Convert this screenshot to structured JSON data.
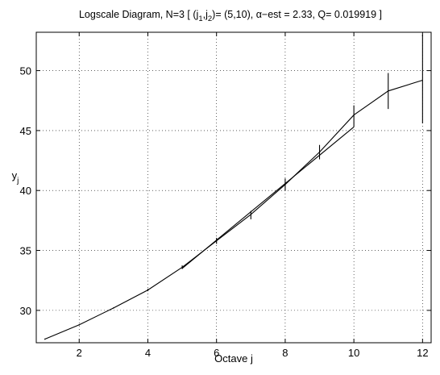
{
  "chart_data": {
    "type": "line",
    "title": "Logscale Diagram,  N=3   [ (j₁,j₂)= (5,10),   α−est = 2.33,    Q= 0.019919 ]",
    "title_parts": {
      "prefix": "Logscale Diagram,  N=3   [ (j",
      "sub1": "1",
      "mid": ",j",
      "sub2": "2",
      "suffix": ")= (5,10),   α−est = 2.33,    Q= 0.019919 ]"
    },
    "xlabel": "Octave j",
    "ylabel": "y",
    "ylabel_sub": "j",
    "xlim": [
      0.75,
      12.25
    ],
    "ylim": [
      27.3,
      53.2
    ],
    "xticks": [
      2,
      4,
      6,
      8,
      10,
      12
    ],
    "yticks": [
      30,
      35,
      40,
      45,
      50
    ],
    "grid": true,
    "series": [
      {
        "x": [
          1,
          2,
          3,
          4,
          5,
          6,
          7,
          8,
          9,
          10,
          11,
          12
        ],
        "y": [
          27.6,
          28.8,
          30.2,
          31.7,
          33.6,
          35.8,
          38.0,
          40.5,
          43.2,
          46.3,
          48.3,
          49.2
        ],
        "errorbars": [
          [
            1,
            27.55,
            27.65
          ],
          [
            2,
            28.75,
            28.85
          ],
          [
            3,
            30.15,
            30.25
          ],
          [
            4,
            31.6,
            31.8
          ],
          [
            5,
            33.45,
            33.75
          ],
          [
            6,
            35.55,
            36.05
          ],
          [
            7,
            37.6,
            38.3
          ],
          [
            8,
            40.0,
            41.0
          ],
          [
            9,
            42.6,
            43.8
          ],
          [
            10,
            45.3,
            47.1
          ],
          [
            11,
            46.8,
            49.8
          ],
          [
            12,
            45.6,
            53.0
          ]
        ]
      },
      {
        "x": [
          5,
          10
        ],
        "y": [
          33.5,
          45.3
        ]
      }
    ]
  }
}
